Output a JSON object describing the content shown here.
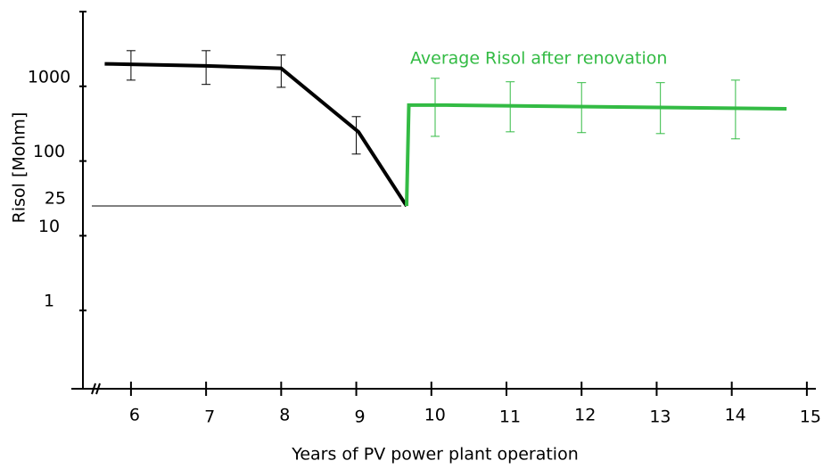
{
  "chart_data": {
    "type": "line",
    "log_y": true,
    "y_label": "Risol [Mohm]",
    "x_label": "Years of PV power plant operation",
    "annotation": "Average Risol after renovation",
    "xlim": [
      5.36,
      15.12
    ],
    "ylim": [
      0.1,
      10000
    ],
    "xticks": [
      6,
      7,
      8,
      9,
      10,
      11,
      12,
      13,
      14,
      15
    ],
    "yticks": [
      1,
      10,
      25,
      100,
      1000
    ],
    "series": [
      {
        "color": "#000000",
        "x": [
          5.65,
          7,
          8,
          9.03,
          9.67
        ],
        "values": [
          2000,
          1880,
          1740,
          245,
          25
        ],
        "errorbars": {
          "x": [
            6,
            7,
            8,
            9
          ],
          "low": [
            1210,
            1060,
            970,
            124
          ],
          "high": [
            3000,
            3000,
            2620,
            393
          ]
        }
      },
      {
        "color": "#33bb44",
        "x": [
          9.67,
          9.7,
          10.2,
          14.73
        ],
        "values": [
          25,
          560,
          560,
          500
        ],
        "errorbars": {
          "x": [
            10.05,
            11.05,
            12,
            13.05,
            14.05
          ],
          "low": [
            214,
            246,
            240,
            233,
            198
          ],
          "high": [
            1280,
            1150,
            1120,
            1120,
            1210
          ]
        }
      }
    ]
  }
}
